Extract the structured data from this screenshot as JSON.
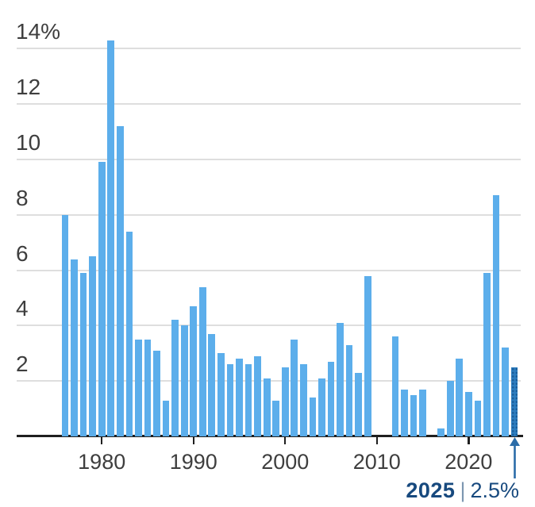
{
  "chart_data": {
    "type": "bar",
    "title": "",
    "unit": "%",
    "x": [
      1976,
      1977,
      1978,
      1979,
      1980,
      1981,
      1982,
      1983,
      1984,
      1985,
      1986,
      1987,
      1988,
      1989,
      1990,
      1991,
      1992,
      1993,
      1994,
      1995,
      1996,
      1997,
      1998,
      1999,
      2000,
      2001,
      2002,
      2003,
      2004,
      2005,
      2006,
      2007,
      2008,
      2009,
      2010,
      2011,
      2012,
      2013,
      2014,
      2015,
      2016,
      2017,
      2018,
      2019,
      2020,
      2021,
      2022,
      2023,
      2024,
      2025
    ],
    "values": [
      8.0,
      6.4,
      5.9,
      6.5,
      9.9,
      14.3,
      11.2,
      7.4,
      3.5,
      3.5,
      3.1,
      1.3,
      4.2,
      4.0,
      4.7,
      5.4,
      3.7,
      3.0,
      2.6,
      2.8,
      2.6,
      2.9,
      2.1,
      1.3,
      2.5,
      3.5,
      2.6,
      1.4,
      2.1,
      2.7,
      4.1,
      3.3,
      2.3,
      5.8,
      0.0,
      0.0,
      3.6,
      1.7,
      1.5,
      1.7,
      0.0,
      0.3,
      2.0,
      2.8,
      1.6,
      1.3,
      5.9,
      8.7,
      3.2,
      2.5
    ],
    "ylim": [
      0,
      14.3
    ],
    "grid": true,
    "legend": "none",
    "y_axis": {
      "ticks": [
        {
          "value": 2,
          "label": "2"
        },
        {
          "value": 4,
          "label": "4"
        },
        {
          "value": 6,
          "label": "6"
        },
        {
          "value": 8,
          "label": "8"
        },
        {
          "value": 10,
          "label": "10"
        },
        {
          "value": 12,
          "label": "12"
        },
        {
          "value": 14,
          "label": "14%"
        }
      ]
    },
    "x_axis": {
      "ticks": [
        {
          "year": 1980,
          "label": "1980"
        },
        {
          "year": 1990,
          "label": "1990"
        },
        {
          "year": 2000,
          "label": "2000"
        },
        {
          "year": 2010,
          "label": "2010"
        },
        {
          "year": 2020,
          "label": "2020"
        }
      ]
    },
    "highlight": {
      "year": 2025,
      "value": 2.5,
      "year_label": "2025",
      "separator": "|",
      "value_label": "2.5%"
    },
    "colors": {
      "bar": "#5caeeb",
      "highlight_bar": "#2e7dbf",
      "highlight_dot": "#1a5c97",
      "gridline": "#dedede",
      "axis": "#1f1f1f",
      "axis_text": "#3e3e3e",
      "annotation_text": "#17497e",
      "separator": "#7d97b1",
      "arrow": "#2b6ca8"
    }
  }
}
